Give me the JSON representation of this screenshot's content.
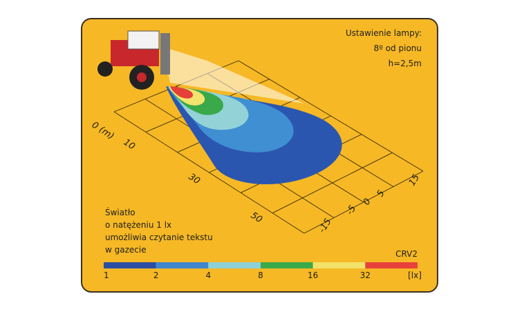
{
  "settings": {
    "lines": [
      "Ustawienie lampy:",
      "8º od pionu",
      "h=2,5m"
    ]
  },
  "distance_labels": [
    "0 (m)",
    "10",
    "30",
    "50"
  ],
  "width_labels": [
    "15",
    "5",
    "0",
    "-5",
    "-15"
  ],
  "note": {
    "lines": [
      "Światło",
      "o natężeniu 1 lx",
      "umożliwia czytanie tekstu",
      "w gazecie"
    ]
  },
  "legend": {
    "title": "CRV2",
    "scale": [
      "1",
      "2",
      "4",
      "8",
      "16",
      "32"
    ],
    "unit": "[lx]"
  }
}
